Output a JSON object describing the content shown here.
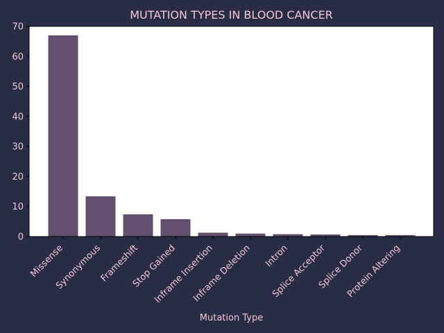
{
  "colors": {
    "background": "#282c44",
    "plot_background": "#ffffff",
    "bar": "#63506e",
    "text": "#f4c6d6",
    "axis": "#000000"
  },
  "chart_data": {
    "type": "bar",
    "title": "MUTATION TYPES IN BLOOD CANCER",
    "xlabel": "Mutation Type",
    "ylabel": "",
    "categories": [
      "Missense",
      "Synonymous",
      "Frameshift",
      "Stop Gained",
      "Inframe Insertion",
      "Inframe Deletion",
      "Intron",
      "Splice Acceptor",
      "Splice Donor",
      "Protein Altering"
    ],
    "values": [
      67,
      13.4,
      7.4,
      5.8,
      1.3,
      1.0,
      0.8,
      0.7,
      0.5,
      0.5
    ],
    "ylim": [
      0,
      70
    ],
    "yticks": [
      0,
      10,
      20,
      30,
      40,
      50,
      60,
      70
    ],
    "grid": false,
    "legend": "none"
  }
}
